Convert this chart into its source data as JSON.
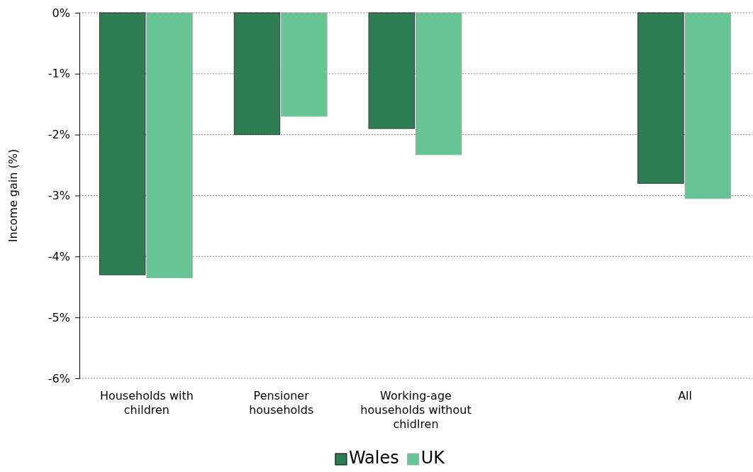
{
  "chart_data": {
    "type": "bar",
    "ylabel": "Income gain (%)",
    "categories": [
      "Households with children",
      "Pensioner households",
      "Working-age households without chidlren",
      null,
      "All"
    ],
    "series": [
      {
        "name": "Wales",
        "color": "#2e7d55",
        "values": [
          -4.3,
          -2.0,
          -1.9,
          null,
          -2.8
        ]
      },
      {
        "name": "UK",
        "color": "#66c595",
        "values": [
          -4.35,
          -1.7,
          -2.33,
          null,
          -3.05
        ]
      }
    ],
    "ylim": [
      -6,
      0
    ],
    "yticks": [
      {
        "value": -6,
        "label": "-6%"
      },
      {
        "value": -5,
        "label": "-5%"
      },
      {
        "value": -4,
        "label": "-4%"
      },
      {
        "value": -3,
        "label": "-3%"
      },
      {
        "value": -2,
        "label": "-2%"
      },
      {
        "value": -1,
        "label": "-1%"
      },
      {
        "value": 0,
        "label": "0%"
      }
    ],
    "grid": "y",
    "legend": "bottom"
  }
}
